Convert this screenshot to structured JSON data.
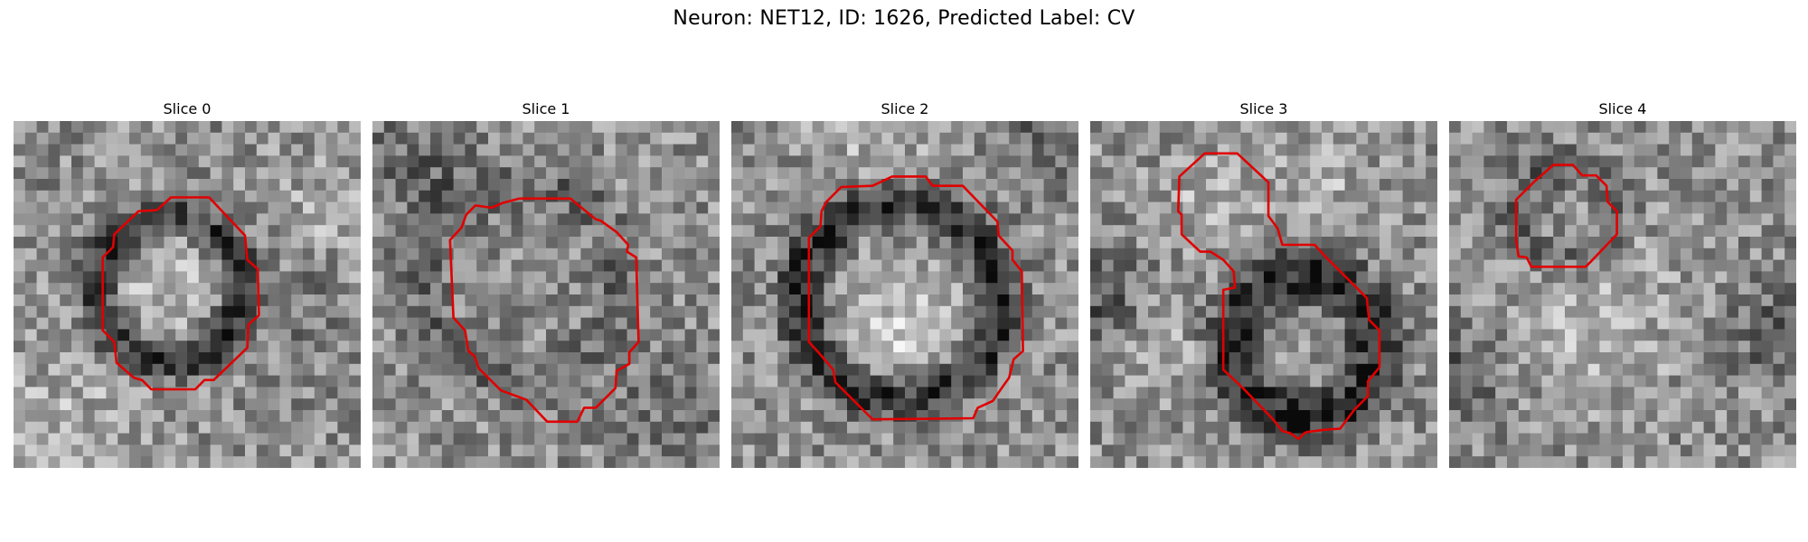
{
  "figure": {
    "title": "Neuron: NET12, ID: 1626, Predicted Label: CV",
    "contour_color": "#e00000"
  },
  "panels": [
    {
      "title": "Slice 0"
    },
    {
      "title": "Slice 1"
    },
    {
      "title": "Slice 2"
    },
    {
      "title": "Slice 3"
    },
    {
      "title": "Slice 4"
    }
  ]
}
